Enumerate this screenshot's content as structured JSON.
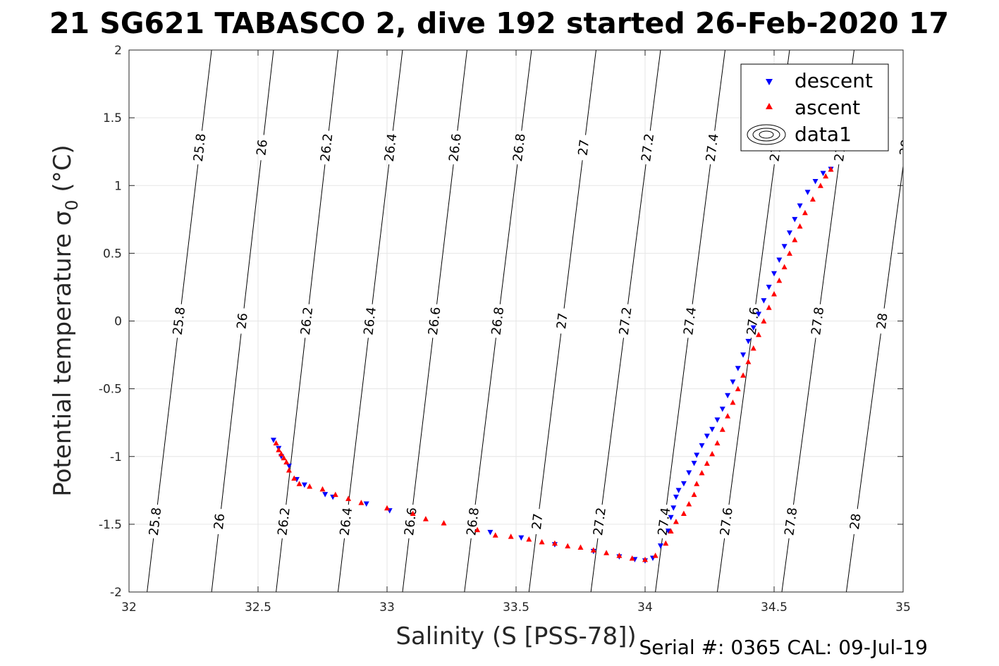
{
  "chart_data": {
    "type": "scatter",
    "title": "21 SG621 TABASCO 2, dive 192 started 26-Feb-2020 17",
    "xlabel": "Salinity (S [PSS-78])",
    "ylabel": "Potential temperature σ",
    "ylabel_sub": "0",
    "ylabel_unit": " (°C)",
    "xlim": [
      32,
      35
    ],
    "ylim": [
      -2,
      2
    ],
    "xticks": [
      32,
      32.5,
      33,
      33.5,
      34,
      34.5,
      35
    ],
    "xtick_labels": [
      "32",
      "32.5",
      "33",
      "33.5",
      "34",
      "34.5",
      "35"
    ],
    "yticks": [
      -2,
      -1.5,
      -1,
      -0.5,
      0,
      0.5,
      1,
      1.5,
      2
    ],
    "ytick_labels": [
      "-2",
      "-1.5",
      "-1",
      "-0.5",
      "0",
      "0.5",
      "1",
      "1.5",
      "2"
    ],
    "grid": true,
    "legend_position": "top-right",
    "legend": [
      "descent",
      "ascent",
      "data1"
    ],
    "footer": "Serial #: 0365  CAL: 09-Jul-19",
    "colors": {
      "descent": "#0000ff",
      "ascent": "#ff0000",
      "contour": "#000000",
      "grid": "#e6e6e6"
    },
    "density_contours": [
      {
        "label": "25.8",
        "bottom": [
          32.07,
          -2
        ],
        "top": [
          32.32,
          2
        ]
      },
      {
        "label": "26",
        "bottom": [
          32.32,
          -2
        ],
        "top": [
          32.56,
          2
        ]
      },
      {
        "label": "26.2",
        "bottom": [
          32.57,
          -2
        ],
        "top": [
          32.81,
          2
        ]
      },
      {
        "label": "26.4",
        "bottom": [
          32.81,
          -2
        ],
        "top": [
          33.06,
          2
        ]
      },
      {
        "label": "26.6",
        "bottom": [
          33.06,
          -2
        ],
        "top": [
          33.31,
          2
        ]
      },
      {
        "label": "26.8",
        "bottom": [
          33.3,
          -2
        ],
        "top": [
          33.56,
          2
        ]
      },
      {
        "label": "27",
        "bottom": [
          33.55,
          -2
        ],
        "top": [
          33.81,
          2
        ]
      },
      {
        "label": "27.2",
        "bottom": [
          33.79,
          -2
        ],
        "top": [
          34.06,
          2
        ]
      },
      {
        "label": "27.4",
        "bottom": [
          34.04,
          -2
        ],
        "top": [
          34.31,
          2
        ]
      },
      {
        "label": "27.6",
        "bottom": [
          34.28,
          -2
        ],
        "top": [
          34.56,
          2
        ]
      },
      {
        "label": "27.8",
        "bottom": [
          34.53,
          -2
        ],
        "top": [
          34.81,
          2
        ]
      },
      {
        "label": "28",
        "bottom": [
          34.78,
          -2
        ],
        "top": [
          35.06,
          2
        ]
      }
    ],
    "descent_points": [
      [
        32.56,
        -0.88
      ],
      [
        32.58,
        -0.94
      ],
      [
        32.59,
        -1.0
      ],
      [
        32.62,
        -1.07
      ],
      [
        32.65,
        -1.17
      ],
      [
        32.68,
        -1.21
      ],
      [
        32.76,
        -1.28
      ],
      [
        32.79,
        -1.3
      ],
      [
        32.92,
        -1.35
      ],
      [
        33.01,
        -1.4
      ],
      [
        33.4,
        -1.56
      ],
      [
        33.52,
        -1.6
      ],
      [
        33.65,
        -1.65
      ],
      [
        33.8,
        -1.7
      ],
      [
        33.9,
        -1.74
      ],
      [
        33.96,
        -1.76
      ],
      [
        34.0,
        -1.77
      ],
      [
        34.03,
        -1.75
      ],
      [
        34.06,
        -1.66
      ],
      [
        34.09,
        -1.55
      ],
      [
        34.1,
        -1.45
      ],
      [
        34.11,
        -1.38
      ],
      [
        34.12,
        -1.3
      ],
      [
        34.13,
        -1.25
      ],
      [
        34.15,
        -1.2
      ],
      [
        34.17,
        -1.12
      ],
      [
        34.19,
        -1.05
      ],
      [
        34.2,
        -0.99
      ],
      [
        34.22,
        -0.92
      ],
      [
        34.24,
        -0.85
      ],
      [
        34.26,
        -0.8
      ],
      [
        34.28,
        -0.73
      ],
      [
        34.3,
        -0.65
      ],
      [
        34.32,
        -0.55
      ],
      [
        34.34,
        -0.45
      ],
      [
        34.36,
        -0.35
      ],
      [
        34.38,
        -0.25
      ],
      [
        34.4,
        -0.15
      ],
      [
        34.42,
        -0.05
      ],
      [
        34.44,
        0.05
      ],
      [
        34.46,
        0.15
      ],
      [
        34.48,
        0.25
      ],
      [
        34.5,
        0.35
      ],
      [
        34.52,
        0.45
      ],
      [
        34.54,
        0.55
      ],
      [
        34.56,
        0.65
      ],
      [
        34.58,
        0.75
      ],
      [
        34.6,
        0.85
      ],
      [
        34.63,
        0.95
      ],
      [
        34.66,
        1.03
      ],
      [
        34.69,
        1.09
      ],
      [
        34.72,
        1.12
      ]
    ],
    "ascent_points": [
      [
        32.57,
        -0.9
      ],
      [
        32.58,
        -0.95
      ],
      [
        32.59,
        -0.98
      ],
      [
        32.6,
        -1.01
      ],
      [
        32.61,
        -1.04
      ],
      [
        32.62,
        -1.1
      ],
      [
        32.64,
        -1.16
      ],
      [
        32.66,
        -1.2
      ],
      [
        32.7,
        -1.22
      ],
      [
        32.75,
        -1.24
      ],
      [
        32.8,
        -1.28
      ],
      [
        32.85,
        -1.31
      ],
      [
        32.9,
        -1.34
      ],
      [
        33.0,
        -1.38
      ],
      [
        33.1,
        -1.42
      ],
      [
        33.15,
        -1.46
      ],
      [
        33.22,
        -1.49
      ],
      [
        33.35,
        -1.54
      ],
      [
        33.42,
        -1.58
      ],
      [
        33.48,
        -1.59
      ],
      [
        33.55,
        -1.61
      ],
      [
        33.6,
        -1.63
      ],
      [
        33.65,
        -1.64
      ],
      [
        33.7,
        -1.66
      ],
      [
        33.75,
        -1.67
      ],
      [
        33.8,
        -1.69
      ],
      [
        33.85,
        -1.71
      ],
      [
        33.9,
        -1.73
      ],
      [
        33.95,
        -1.75
      ],
      [
        34.0,
        -1.76
      ],
      [
        34.04,
        -1.73
      ],
      [
        34.08,
        -1.64
      ],
      [
        34.1,
        -1.55
      ],
      [
        34.12,
        -1.48
      ],
      [
        34.15,
        -1.42
      ],
      [
        34.17,
        -1.35
      ],
      [
        34.19,
        -1.28
      ],
      [
        34.2,
        -1.2
      ],
      [
        34.22,
        -1.12
      ],
      [
        34.24,
        -1.05
      ],
      [
        34.26,
        -0.98
      ],
      [
        34.28,
        -0.9
      ],
      [
        34.3,
        -0.8
      ],
      [
        34.32,
        -0.7
      ],
      [
        34.34,
        -0.6
      ],
      [
        34.36,
        -0.5
      ],
      [
        34.38,
        -0.4
      ],
      [
        34.4,
        -0.3
      ],
      [
        34.42,
        -0.2
      ],
      [
        34.44,
        -0.1
      ],
      [
        34.46,
        0.0
      ],
      [
        34.48,
        0.1
      ],
      [
        34.5,
        0.2
      ],
      [
        34.52,
        0.3
      ],
      [
        34.54,
        0.4
      ],
      [
        34.56,
        0.5
      ],
      [
        34.58,
        0.6
      ],
      [
        34.6,
        0.7
      ],
      [
        34.62,
        0.8
      ],
      [
        34.65,
        0.9
      ],
      [
        34.68,
        1.0
      ],
      [
        34.7,
        1.07
      ],
      [
        34.72,
        1.12
      ]
    ]
  }
}
